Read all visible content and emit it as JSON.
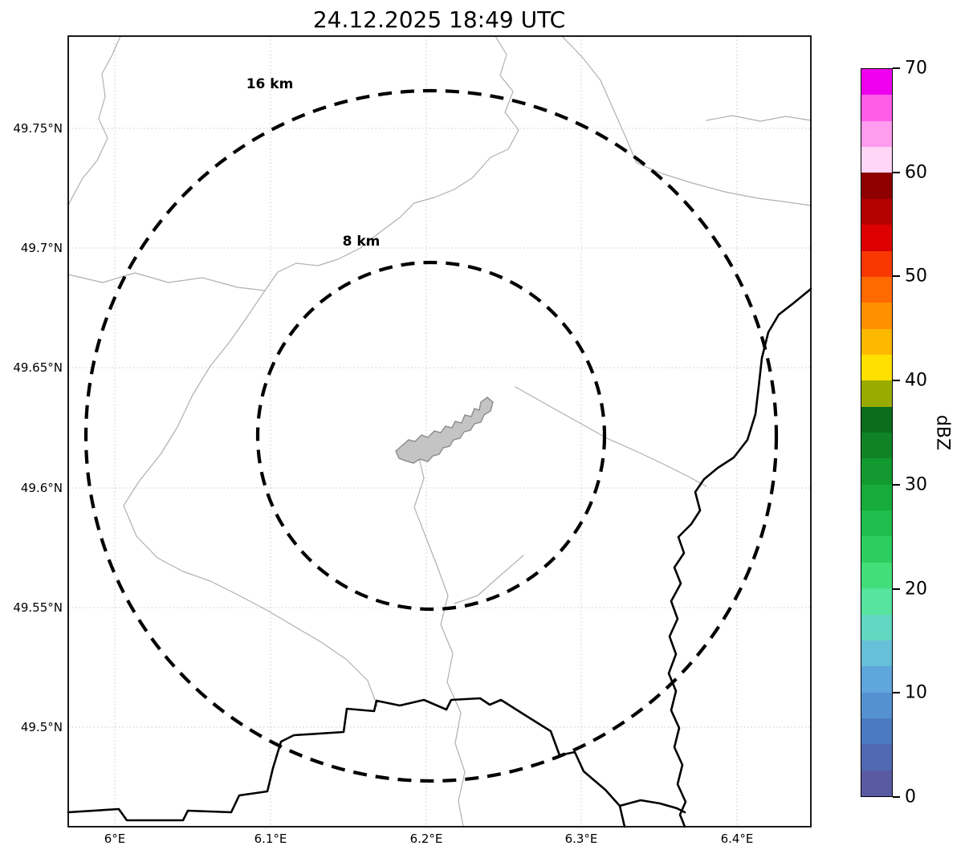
{
  "title": "24.12.2025 18:49 UTC",
  "map": {
    "x_ticks": [
      "6°E",
      "6.1°E",
      "6.2°E",
      "6.3°E",
      "6.4°E"
    ],
    "y_ticks": [
      "49.75°N",
      "49.7°N",
      "49.65°N",
      "49.6°N",
      "49.55°N",
      "49.5°N"
    ],
    "range_rings": [
      {
        "label": "16 km",
        "radius_km": 16
      },
      {
        "label": "8 km",
        "radius_km": 8
      }
    ]
  },
  "colorbar": {
    "label": "dBZ",
    "min": 0,
    "max": 70,
    "ticks": [
      "70",
      "60",
      "50",
      "40",
      "30",
      "20",
      "10",
      "0"
    ],
    "colors_top_to_bottom": [
      "#ee00ee",
      "#ff5ce8",
      "#ff9cee",
      "#ffd6f5",
      "#8e0000",
      "#b50000",
      "#dc0000",
      "#f83800",
      "#ff6a00",
      "#ff9100",
      "#ffb800",
      "#ffe000",
      "#9aab00",
      "#0a6e1c",
      "#0e8426",
      "#129a31",
      "#17ab3c",
      "#1fbd4d",
      "#2cce5f",
      "#41de79",
      "#57e49e",
      "#62d8c2",
      "#66c0d8",
      "#5fa6dc",
      "#5590d0",
      "#4c7ac2",
      "#5168b2",
      "#5a5aa2"
    ]
  }
}
